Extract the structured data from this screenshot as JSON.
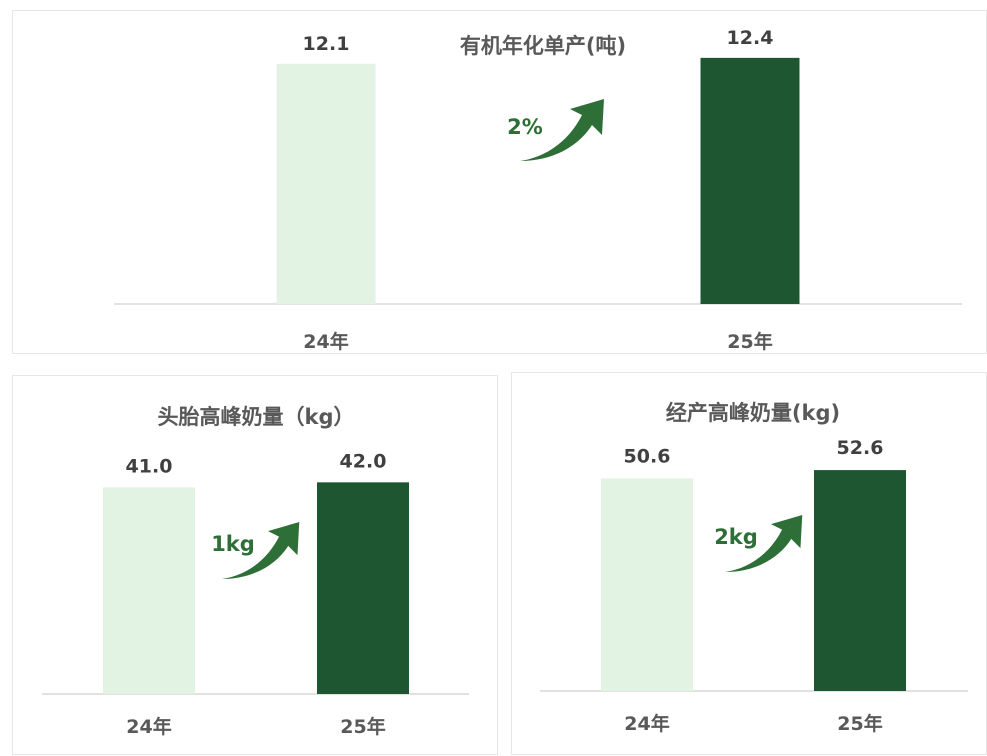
{
  "colors": {
    "bar_prev": "#e2f2e3",
    "bar_curr": "#1e5631",
    "arrow": "#2e6e37",
    "baseline": "#d9d9d9"
  },
  "chart_data": [
    {
      "type": "bar",
      "title": "有机年化单产(吨)",
      "categories": [
        "24年",
        "25年"
      ],
      "values": [
        12.1,
        12.4
      ],
      "value_labels": [
        "12.1",
        "12.4"
      ],
      "change_label": "2%",
      "ylim": [
        0,
        13.3
      ],
      "grid": false,
      "legend": "none"
    },
    {
      "type": "bar",
      "title": "头胎高峰奶量（kg）",
      "categories": [
        "24年",
        "25年"
      ],
      "values": [
        41.0,
        42.0
      ],
      "value_labels": [
        "41.0",
        "42.0"
      ],
      "change_label": "1kg",
      "ylim": [
        0,
        50
      ],
      "grid": false,
      "legend": "none"
    },
    {
      "type": "bar",
      "title": "经产高峰奶量(kg)",
      "categories": [
        "24年",
        "25年"
      ],
      "values": [
        50.6,
        52.6
      ],
      "value_labels": [
        "50.6",
        "52.6"
      ],
      "change_label": "2kg",
      "ylim": [
        0,
        60
      ],
      "grid": false,
      "legend": "none"
    }
  ]
}
